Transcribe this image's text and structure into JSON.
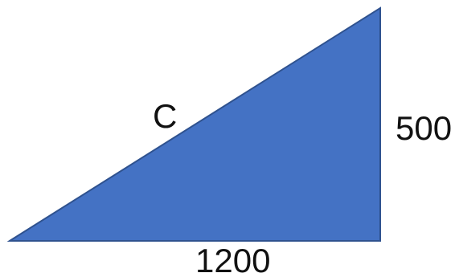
{
  "diagram": {
    "shape": "right-triangle",
    "fill_color": "#4472C4",
    "stroke_color": "#2F528F",
    "labels": {
      "hypotenuse": "C",
      "height": "500",
      "base": "1200"
    }
  }
}
